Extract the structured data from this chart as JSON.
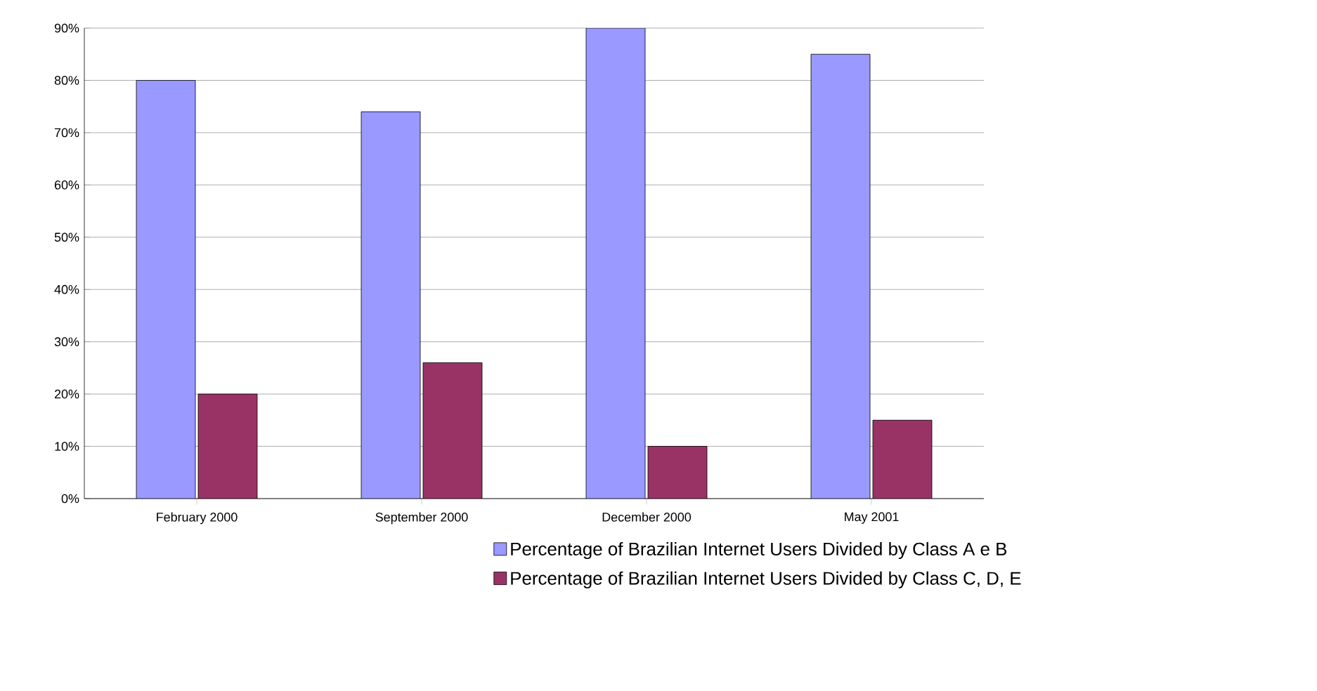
{
  "chart_data": {
    "type": "bar",
    "categories": [
      "February 2000",
      "September 2000",
      "December 2000",
      "May 2001"
    ],
    "series": [
      {
        "name": "Percentage of Brazilian Internet Users Divided by Class A e B",
        "color": "#9999ff",
        "values": [
          80,
          74,
          90,
          85
        ]
      },
      {
        "name": "Percentage of Brazilian Internet Users Divided by Class C, D, E",
        "color": "#993366",
        "values": [
          20,
          26,
          10,
          15
        ]
      }
    ],
    "ylim": [
      0,
      90
    ],
    "yticks": [
      {
        "value": 0,
        "label": "0%"
      },
      {
        "value": 10,
        "label": "10%"
      },
      {
        "value": 20,
        "label": "20%"
      },
      {
        "value": 30,
        "label": "30%"
      },
      {
        "value": 40,
        "label": "40%"
      },
      {
        "value": 50,
        "label": "50%"
      },
      {
        "value": 60,
        "label": "60%"
      },
      {
        "value": 70,
        "label": "70%"
      },
      {
        "value": 80,
        "label": "80%"
      },
      {
        "value": 90,
        "label": "90%"
      }
    ],
    "grid": "y",
    "legend": "bottom right"
  }
}
